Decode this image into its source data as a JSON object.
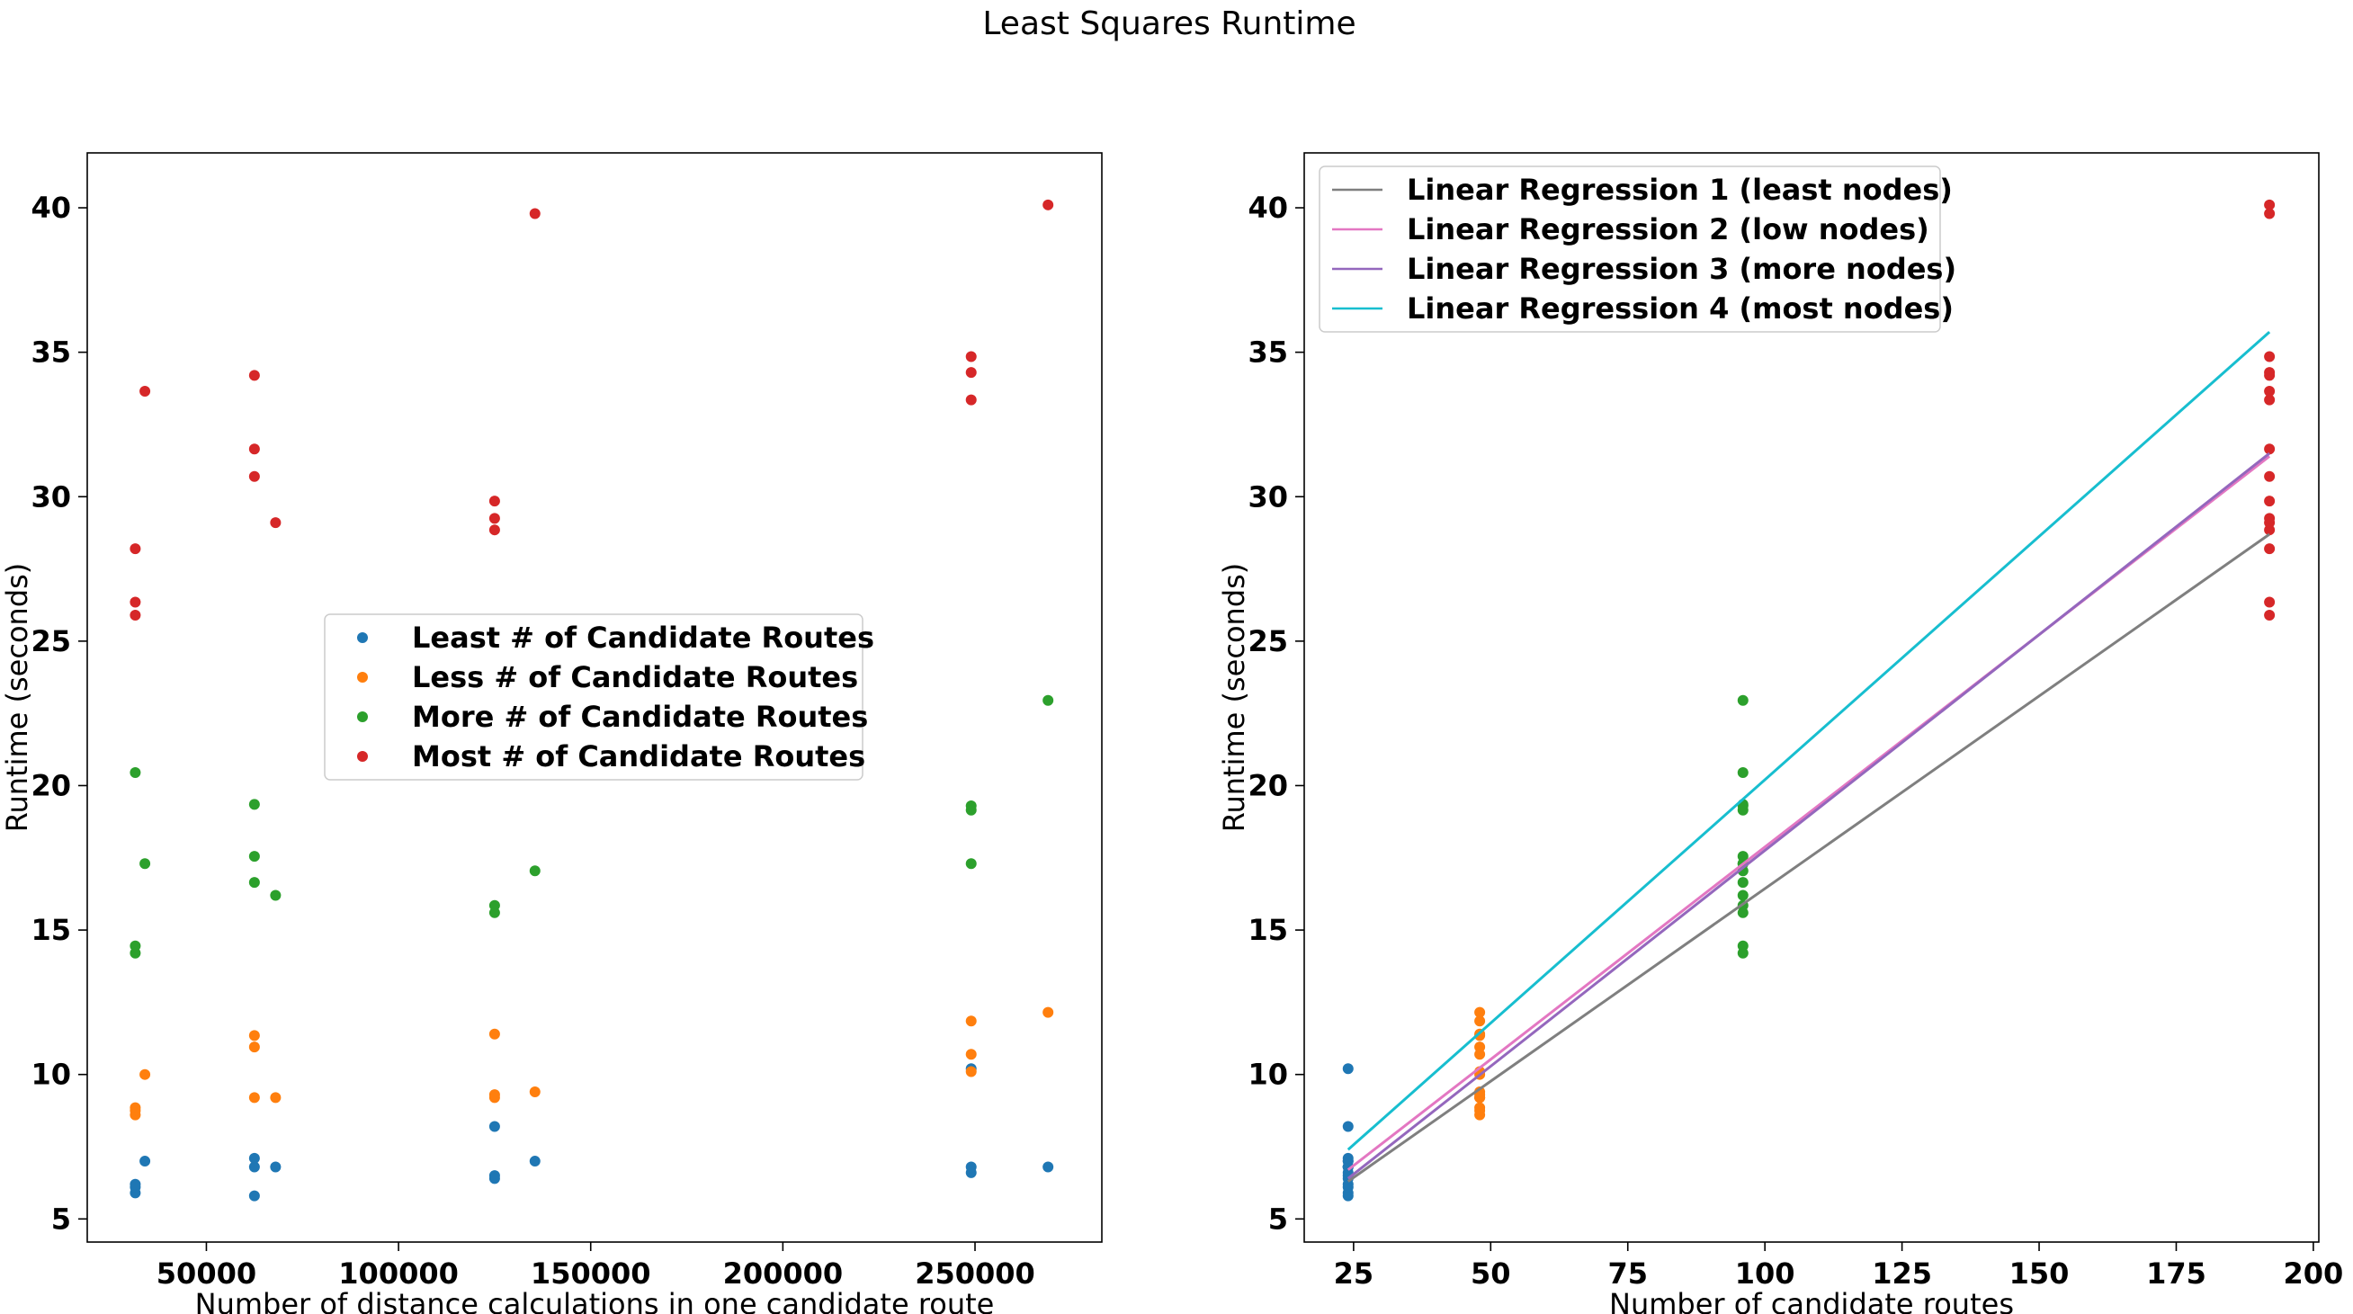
{
  "figure": {
    "title": "Least Squares Runtime"
  },
  "chart_data": [
    {
      "type": "scatter",
      "xlabel": "Number of distance calculations in one candidate route",
      "ylabel": "Runtime (seconds)",
      "xlim": [
        19000,
        283000
      ],
      "ylim": [
        4.2,
        41.9
      ],
      "xticks": [
        50000,
        100000,
        150000,
        200000,
        250000
      ],
      "xtick_labels": [
        "50000",
        "100000",
        "150000",
        "200000",
        "250000"
      ],
      "yticks": [
        5,
        10,
        15,
        20,
        25,
        30,
        35,
        40
      ],
      "ytick_labels": [
        "5",
        "10",
        "15",
        "20",
        "25",
        "30",
        "35",
        "40"
      ],
      "legend_position": "center-left",
      "series": [
        {
          "name": "Least # of Candidate Routes",
          "color": "#1f77b4",
          "points": [
            [
              31500,
              5.9
            ],
            [
              31500,
              6.1
            ],
            [
              31500,
              6.2
            ],
            [
              34000,
              7.0
            ],
            [
              62500,
              5.8
            ],
            [
              62500,
              6.8
            ],
            [
              62500,
              7.1
            ],
            [
              68000,
              6.8
            ],
            [
              125000,
              6.4
            ],
            [
              125000,
              6.5
            ],
            [
              125000,
              8.2
            ],
            [
              135500,
              7.0
            ],
            [
              249000,
              6.6
            ],
            [
              249000,
              6.8
            ],
            [
              249000,
              10.2
            ],
            [
              269000,
              6.8
            ]
          ]
        },
        {
          "name": "Less # of Candidate Routes",
          "color": "#ff7f0e",
          "points": [
            [
              31500,
              8.6
            ],
            [
              31500,
              8.75
            ],
            [
              31500,
              8.85
            ],
            [
              34000,
              10.0
            ],
            [
              62500,
              9.2
            ],
            [
              62500,
              10.95
            ],
            [
              62500,
              11.35
            ],
            [
              68000,
              9.2
            ],
            [
              125000,
              9.2
            ],
            [
              125000,
              9.3
            ],
            [
              125000,
              11.4
            ],
            [
              135500,
              9.4
            ],
            [
              249000,
              10.1
            ],
            [
              249000,
              10.7
            ],
            [
              249000,
              11.85
            ],
            [
              269000,
              12.15
            ]
          ]
        },
        {
          "name": "More # of Candidate Routes",
          "color": "#2ca02c",
          "points": [
            [
              31500,
              14.2
            ],
            [
              31500,
              14.45
            ],
            [
              31500,
              20.45
            ],
            [
              34000,
              17.3
            ],
            [
              62500,
              16.65
            ],
            [
              62500,
              17.55
            ],
            [
              62500,
              19.35
            ],
            [
              68000,
              16.2
            ],
            [
              125000,
              15.6
            ],
            [
              125000,
              15.85
            ],
            [
              135500,
              17.05
            ],
            [
              249000,
              17.3
            ],
            [
              249000,
              19.15
            ],
            [
              249000,
              19.3
            ],
            [
              269000,
              22.95
            ]
          ]
        },
        {
          "name": "Most # of Candidate Routes",
          "color": "#d62728",
          "points": [
            [
              31500,
              25.9
            ],
            [
              31500,
              26.35
            ],
            [
              31500,
              28.2
            ],
            [
              34000,
              33.65
            ],
            [
              62500,
              30.7
            ],
            [
              62500,
              31.65
            ],
            [
              62500,
              34.2
            ],
            [
              68000,
              29.1
            ],
            [
              125000,
              28.85
            ],
            [
              125000,
              29.25
            ],
            [
              125000,
              29.85
            ],
            [
              135500,
              39.8
            ],
            [
              249000,
              33.35
            ],
            [
              249000,
              34.3
            ],
            [
              249000,
              34.85
            ],
            [
              269000,
              40.1
            ]
          ]
        }
      ]
    },
    {
      "type": "scatter",
      "xlabel": "Number of candidate routes",
      "ylabel": "Runtime (seconds)",
      "xlim": [
        16,
        201
      ],
      "ylim": [
        4.2,
        41.9
      ],
      "xticks": [
        25,
        50,
        75,
        100,
        125,
        150,
        175,
        200
      ],
      "xtick_labels": [
        "25",
        "50",
        "75",
        "100",
        "125",
        "150",
        "175",
        "200"
      ],
      "yticks": [
        5,
        10,
        15,
        20,
        25,
        30,
        35,
        40
      ],
      "ytick_labels": [
        "5",
        "10",
        "15",
        "20",
        "25",
        "30",
        "35",
        "40"
      ],
      "legend_position": "upper-left",
      "series": [
        {
          "color": "#1f77b4",
          "x": [
            24,
            24,
            24,
            24,
            24,
            24,
            24,
            24,
            24,
            24,
            24,
            24,
            24,
            24,
            24,
            24
          ],
          "y": [
            5.8,
            5.9,
            6.1,
            6.2,
            6.4,
            6.5,
            6.6,
            6.8,
            6.8,
            6.8,
            6.8,
            7.0,
            7.0,
            7.1,
            8.2,
            10.2
          ]
        },
        {
          "color": "#ff7f0e",
          "x": [
            48,
            48,
            48,
            48,
            48,
            48,
            48,
            48,
            48,
            48,
            48,
            48,
            48,
            48,
            48,
            48
          ],
          "y": [
            8.6,
            8.75,
            8.85,
            9.2,
            9.2,
            9.2,
            9.3,
            9.4,
            10.0,
            10.1,
            10.7,
            10.95,
            11.35,
            11.4,
            11.85,
            12.15
          ]
        },
        {
          "color": "#2ca02c",
          "x": [
            96,
            96,
            96,
            96,
            96,
            96,
            96,
            96,
            96,
            96,
            96,
            96,
            96,
            96,
            96
          ],
          "y": [
            14.2,
            14.45,
            15.6,
            15.85,
            16.2,
            16.65,
            17.05,
            17.3,
            17.3,
            17.55,
            19.15,
            19.3,
            19.35,
            20.45,
            22.95
          ]
        },
        {
          "color": "#d62728",
          "x": [
            192,
            192,
            192,
            192,
            192,
            192,
            192,
            192,
            192,
            192,
            192,
            192,
            192,
            192,
            192,
            192
          ],
          "y": [
            25.9,
            26.35,
            28.2,
            28.85,
            29.1,
            29.25,
            29.85,
            30.7,
            31.65,
            33.35,
            33.65,
            34.2,
            34.3,
            34.85,
            39.8,
            40.1
          ]
        }
      ],
      "lines": [
        {
          "name": "Linear Regression 1 (least nodes)",
          "color": "#7f7f7f",
          "x": [
            24,
            192
          ],
          "y": [
            6.3,
            28.7
          ]
        },
        {
          "name": "Linear Regression 2 (low nodes)",
          "color": "#e377c2",
          "x": [
            24,
            192
          ],
          "y": [
            6.7,
            31.4
          ]
        },
        {
          "name": "Linear Regression 3 (more nodes)",
          "color": "#9467bd",
          "x": [
            24,
            192
          ],
          "y": [
            6.4,
            31.5
          ]
        },
        {
          "name": "Linear Regression 4 (most nodes)",
          "color": "#17becf",
          "x": [
            24,
            192
          ],
          "y": [
            7.4,
            35.7
          ]
        }
      ]
    }
  ]
}
